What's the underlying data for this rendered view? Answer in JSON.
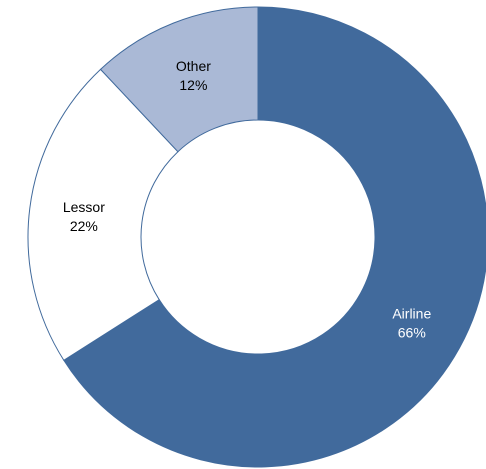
{
  "chart_data": {
    "type": "pie",
    "donut": true,
    "start_angle_deg": 0,
    "direction": "clockwise",
    "categories": [
      "Airline",
      "Lessor",
      "Other"
    ],
    "values": [
      66,
      22,
      12
    ],
    "value_labels": [
      "66%",
      "22%",
      "12%"
    ],
    "colors": [
      "#416a9c",
      "#ffffff",
      "#aab9d6"
    ],
    "label_colors": [
      "#ffffff",
      "#000000",
      "#000000"
    ],
    "slice_stroke": "#416a9c",
    "title": "",
    "legend": "none"
  }
}
